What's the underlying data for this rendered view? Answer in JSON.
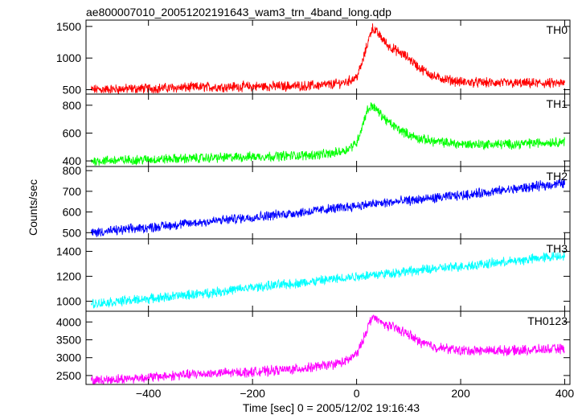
{
  "figure": {
    "title": "ae800007010_20051202191643_wam3_trn_4band_long.qdp",
    "ylabel": "Counts/sec",
    "xlabel": "Time [sec] 0 = 2005/12/02 19:16:43"
  },
  "chart_data": {
    "type": "line",
    "xlim": [
      -520,
      410
    ],
    "x_ticks": [
      -400,
      -200,
      0,
      200,
      400
    ],
    "x_tick_labels": [
      "−400",
      "−200",
      "0",
      "200",
      "400"
    ],
    "series": [
      {
        "name": "TH0",
        "color": "#ff0000",
        "ylim": [
          430,
          1600
        ],
        "y_ticks": [
          500,
          1000,
          1500
        ],
        "x": [
          -510,
          -400,
          -300,
          -200,
          -100,
          -50,
          -20,
          0,
          10,
          20,
          30,
          45,
          60,
          80,
          100,
          120,
          150,
          200,
          300,
          400
        ],
        "y": [
          500,
          520,
          540,
          550,
          560,
          580,
          620,
          700,
          900,
          1200,
          1480,
          1350,
          1200,
          1100,
          1000,
          850,
          700,
          620,
          600,
          600
        ]
      },
      {
        "name": "TH1",
        "color": "#00ff00",
        "ylim": [
          360,
          880
        ],
        "y_ticks": [
          400,
          600,
          800
        ],
        "x": [
          -510,
          -400,
          -300,
          -200,
          -100,
          -50,
          -20,
          0,
          10,
          20,
          30,
          45,
          60,
          80,
          100,
          120,
          150,
          200,
          300,
          400
        ],
        "y": [
          400,
          410,
          420,
          430,
          440,
          450,
          480,
          530,
          640,
          760,
          800,
          740,
          680,
          630,
          590,
          560,
          540,
          520,
          520,
          540
        ]
      },
      {
        "name": "TH2",
        "color": "#0000ff",
        "ylim": [
          470,
          820
        ],
        "y_ticks": [
          500,
          600,
          700,
          800
        ],
        "x": [
          -510,
          -400,
          -300,
          -200,
          -100,
          0,
          100,
          200,
          300,
          400
        ],
        "y": [
          500,
          525,
          550,
          575,
          600,
          630,
          655,
          680,
          710,
          740
        ]
      },
      {
        "name": "TH3",
        "color": "#00ffff",
        "ylim": [
          920,
          1500
        ],
        "y_ticks": [
          1000,
          1200,
          1400
        ],
        "x": [
          -510,
          -400,
          -300,
          -200,
          -100,
          0,
          100,
          200,
          300,
          400
        ],
        "y": [
          980,
          1020,
          1060,
          1110,
          1150,
          1200,
          1240,
          1280,
          1320,
          1370
        ]
      },
      {
        "name": "TH0123",
        "color": "#ff00ff",
        "ylim": [
          2250,
          4300
        ],
        "y_ticks": [
          2500,
          3000,
          3500,
          4000
        ],
        "x": [
          -510,
          -400,
          -300,
          -200,
          -100,
          -50,
          -20,
          0,
          10,
          20,
          30,
          45,
          60,
          80,
          100,
          120,
          150,
          200,
          300,
          400
        ],
        "y": [
          2350,
          2450,
          2550,
          2600,
          2700,
          2800,
          2900,
          3100,
          3400,
          3800,
          4150,
          4000,
          3900,
          3800,
          3650,
          3450,
          3300,
          3200,
          3200,
          3250
        ]
      }
    ]
  }
}
